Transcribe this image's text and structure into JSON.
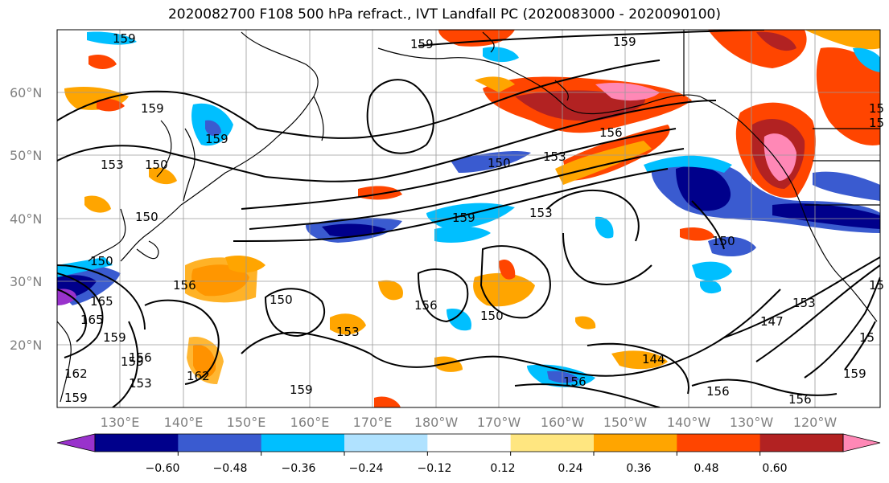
{
  "title": "2020082700 F108 500 hPa refract., IVT Landfall PC (2020083000 - 2020090100)",
  "lat_labels": [
    "60°N",
    "50°N",
    "40°N",
    "30°N",
    "20°N"
  ],
  "lon_labels": [
    "130°E",
    "140°E",
    "150°E",
    "160°E",
    "170°E",
    "180°W",
    "170°W",
    "160°W",
    "150°W",
    "140°W",
    "130°W",
    "120°W"
  ],
  "colorbar": {
    "colors": [
      "#9932cc",
      "#00008b",
      "#3a5bd0",
      "#00bfff",
      "#b0e2ff",
      "#ffffff",
      "#ffe680",
      "#ffa500",
      "#ff4500",
      "#b22222",
      "#ff88b6"
    ],
    "tick_labels": [
      "−0.60",
      "−0.48",
      "−0.36",
      "−0.24",
      "−0.12",
      "0.12",
      "0.24",
      "0.36",
      "0.48",
      "0.60"
    ]
  },
  "contour_labels": [
    "159",
    "159",
    "159",
    "159",
    "153",
    "150",
    "150",
    "153",
    "156",
    "150",
    "159",
    "153",
    "150",
    "156",
    "156",
    "150",
    "150",
    "153",
    "159",
    "162",
    "165",
    "159",
    "156",
    "153",
    "162",
    "159",
    "156",
    "144",
    "156",
    "156",
    "147",
    "153",
    "159",
    "15",
    "15",
    "15",
    "15",
    "159",
    "150",
    "165",
    "159"
  ]
}
